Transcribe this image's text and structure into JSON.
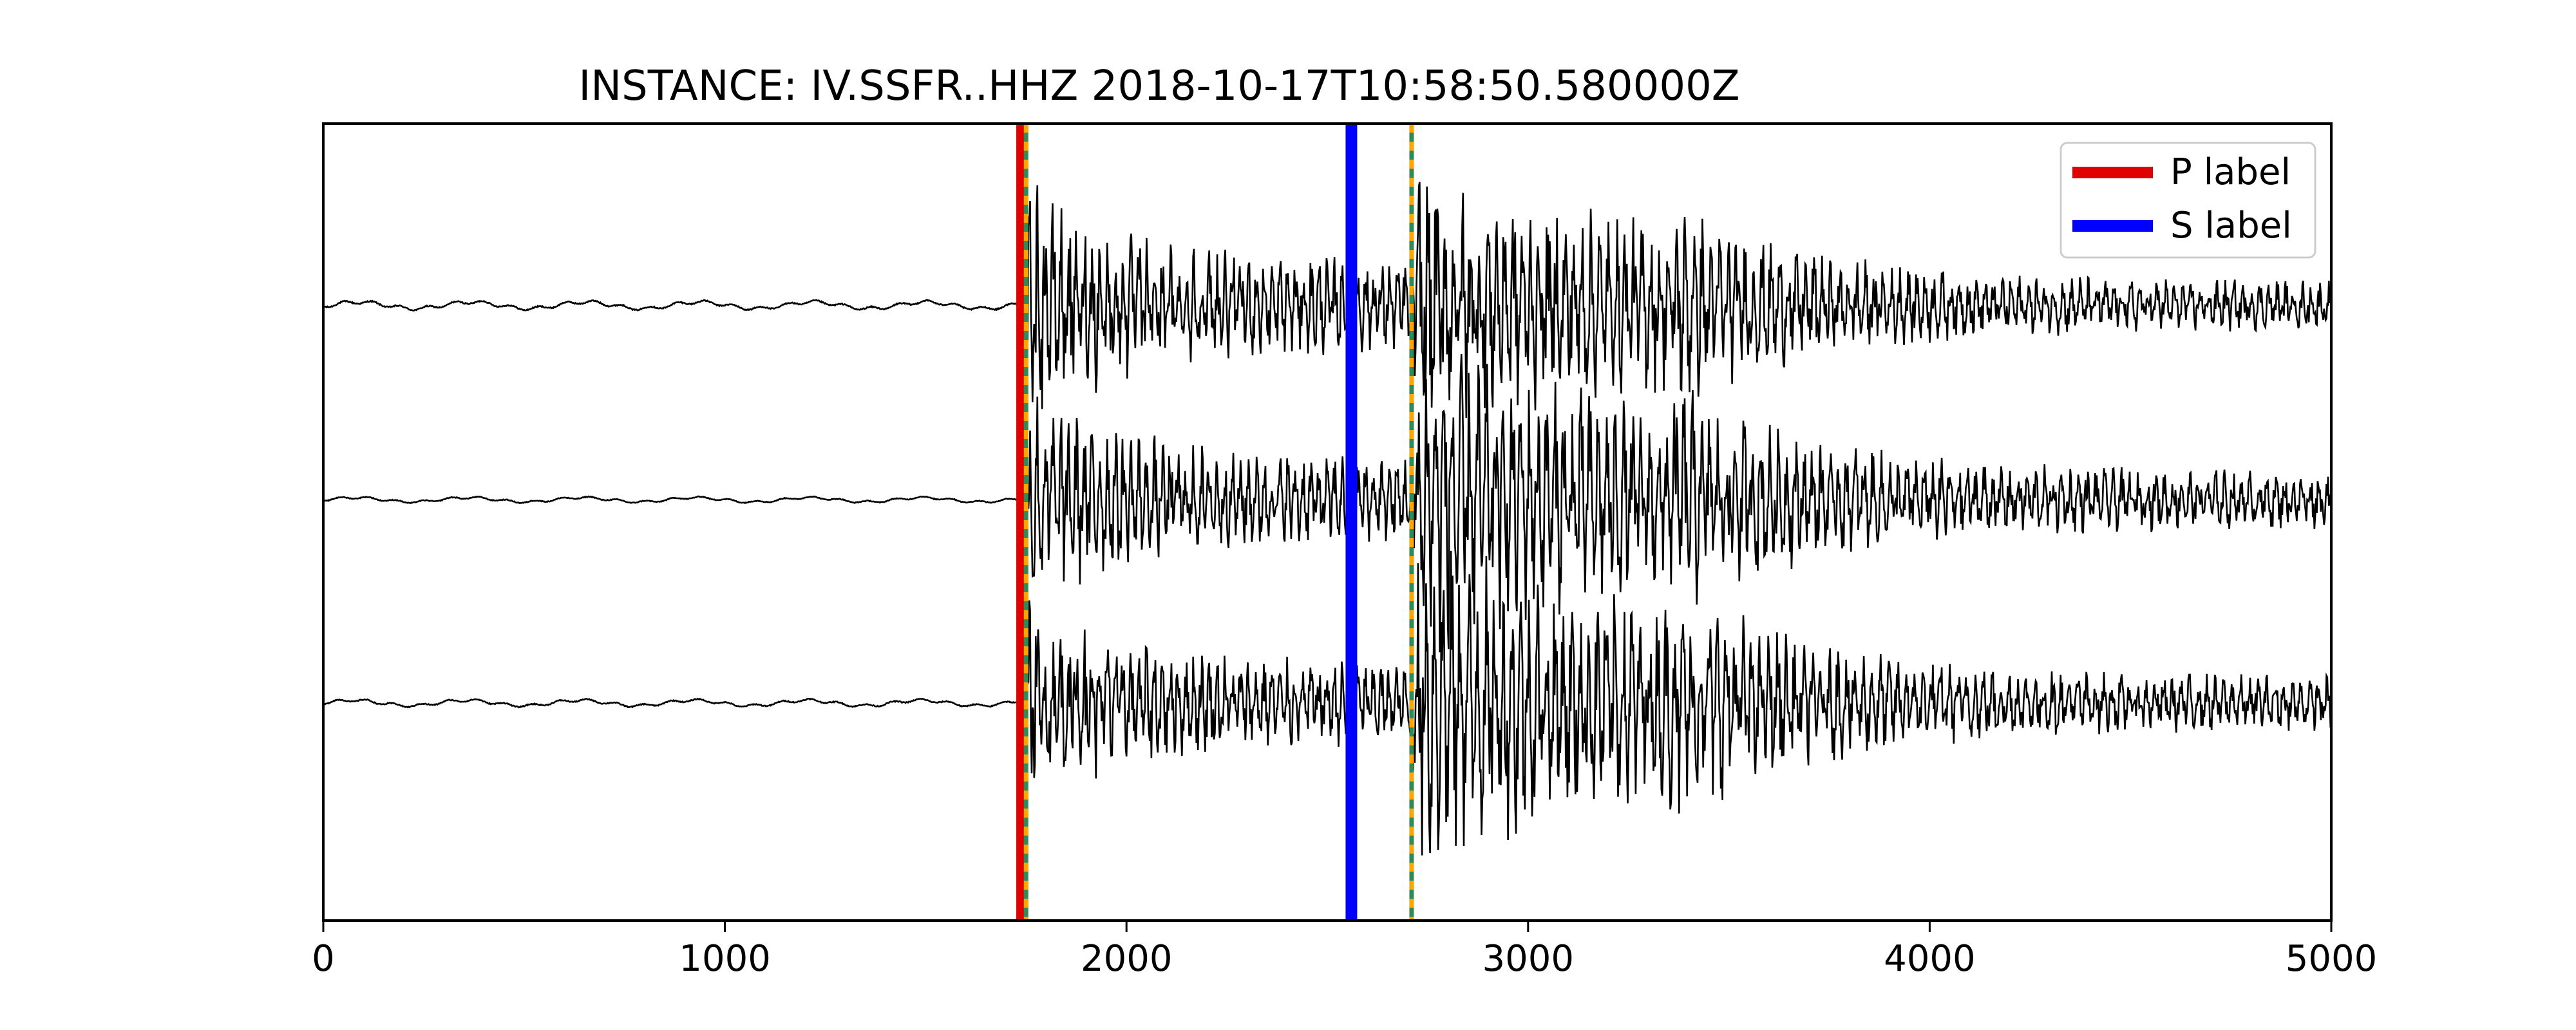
{
  "chart_data": {
    "type": "line",
    "title": "INSTANCE: IV.SSFR..HHZ 2018-10-17T10:58:50.580000Z",
    "xlabel": "",
    "ylabel": "",
    "xlim": [
      0,
      5000
    ],
    "x_ticks": [
      0,
      1000,
      2000,
      3000,
      4000,
      5000
    ],
    "x_tick_labels": [
      "0",
      "1000",
      "2000",
      "3000",
      "4000",
      "5000"
    ],
    "y_ticks": [],
    "grid": false,
    "legend_position": "top-right",
    "legend": [
      {
        "label": "P label",
        "color": "#e00000"
      },
      {
        "label": "S label",
        "color": "#0000ff"
      }
    ],
    "labels": [
      {
        "name": "P label",
        "x": 1740,
        "color": "#e00000"
      },
      {
        "name": "S label",
        "x": 2560,
        "color": "#0000ff"
      }
    ],
    "picks": [
      {
        "x": 1750,
        "color": "#2e8b57",
        "color2": "#ffa500"
      },
      {
        "x": 2710,
        "color": "#2e8b57",
        "color2": "#ffa500"
      }
    ],
    "series": [
      {
        "color": "#000000",
        "noise_amplitude": 0.06,
        "p_amplitude": 1.7,
        "s_amplitude": 2.1,
        "coda_amplitude": 0.35
      },
      {
        "color": "#000000",
        "noise_amplitude": 0.04,
        "p_amplitude": 1.6,
        "s_amplitude": 2.4,
        "coda_amplitude": 0.4
      },
      {
        "color": "#000000",
        "noise_amplitude": 0.05,
        "p_amplitude": 1.5,
        "s_amplitude": 2.6,
        "coda_amplitude": 0.38
      }
    ]
  }
}
